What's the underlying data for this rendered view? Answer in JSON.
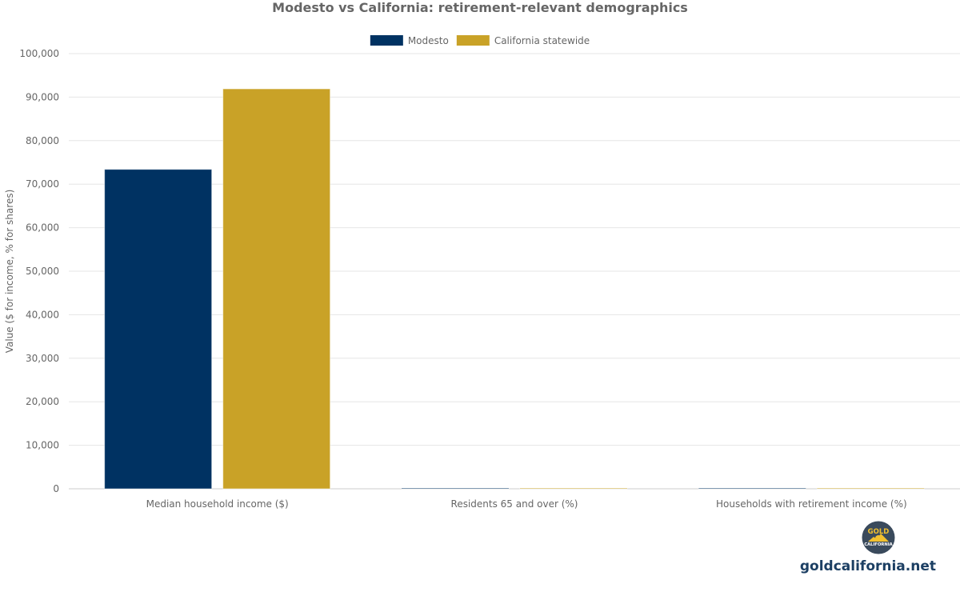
{
  "chart_data": {
    "type": "bar",
    "title": "Modesto vs California: retirement-relevant demographics",
    "ylabel": "Value ($ for income, % for shares)",
    "xlabel": "",
    "ylim": [
      0,
      100000
    ],
    "yticks": [
      0,
      10000,
      20000,
      30000,
      40000,
      50000,
      60000,
      70000,
      80000,
      90000,
      100000
    ],
    "ytick_labels": [
      "0",
      "10,000",
      "20,000",
      "30,000",
      "40,000",
      "50,000",
      "60,000",
      "70,000",
      "80,000",
      "90,000",
      "100,000"
    ],
    "categories": [
      "Median household income ($)",
      "Residents 65 and over (%)",
      "Households with retirement income (%)"
    ],
    "series": [
      {
        "name": "Modesto",
        "color": "#003262",
        "values": [
          73400,
          13,
          20
        ]
      },
      {
        "name": "California statewide",
        "color": "#c9a227",
        "values": [
          91900,
          15,
          18
        ]
      }
    ],
    "grid": true,
    "legend_position": "top-center"
  },
  "branding": {
    "logo_top_text": "GOLD",
    "logo_bottom_text": "CALIFORNIA",
    "site": "goldcalifornia.net"
  }
}
